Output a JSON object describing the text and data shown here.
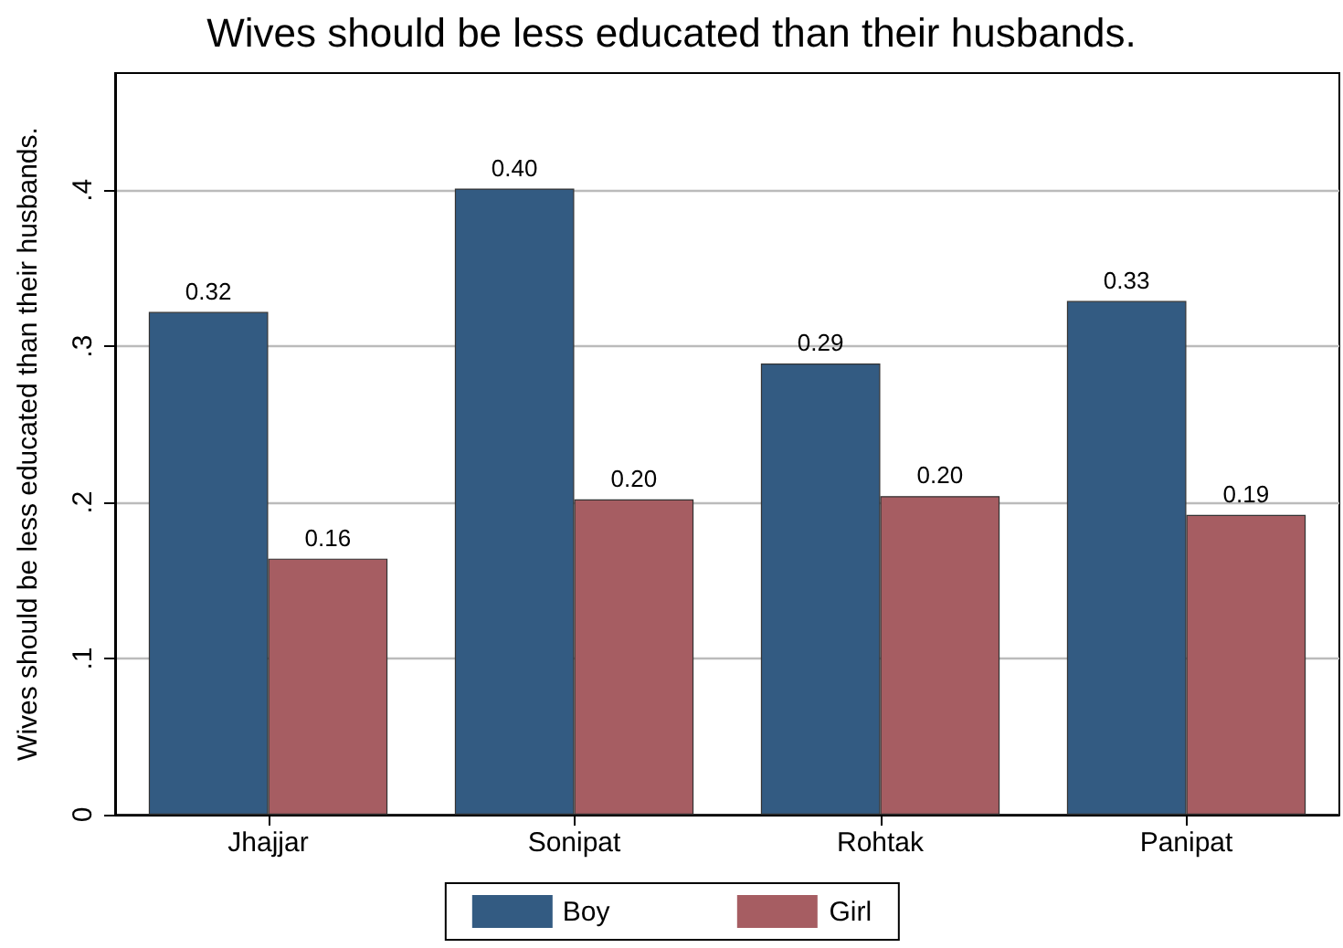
{
  "chart_data": {
    "type": "bar",
    "title": "Wives should be less educated than their husbands.",
    "ylabel": "Wives should be less educated than their husbands.",
    "categories": [
      "Jhajjar",
      "Sonipat",
      "Rohtak",
      "Panipat"
    ],
    "series": [
      {
        "name": "Boy",
        "color": "#335b82",
        "values": [
          0.322,
          0.401,
          0.289,
          0.329
        ],
        "value_labels": [
          "0.32",
          "0.40",
          "0.29",
          "0.33"
        ]
      },
      {
        "name": "Girl",
        "color": "#a65d62",
        "values": [
          0.164,
          0.202,
          0.204,
          0.192
        ],
        "value_labels": [
          "0.16",
          "0.20",
          "0.20",
          "0.19"
        ]
      }
    ],
    "ylim": [
      0,
      0.475
    ],
    "yticks": [
      {
        "value": 0,
        "label": "0"
      },
      {
        "value": 0.1,
        "label": ".1"
      },
      {
        "value": 0.2,
        "label": ".2"
      },
      {
        "value": 0.3,
        "label": ".3"
      },
      {
        "value": 0.4,
        "label": ".4"
      }
    ],
    "grid": "y",
    "legend": "bottom"
  }
}
